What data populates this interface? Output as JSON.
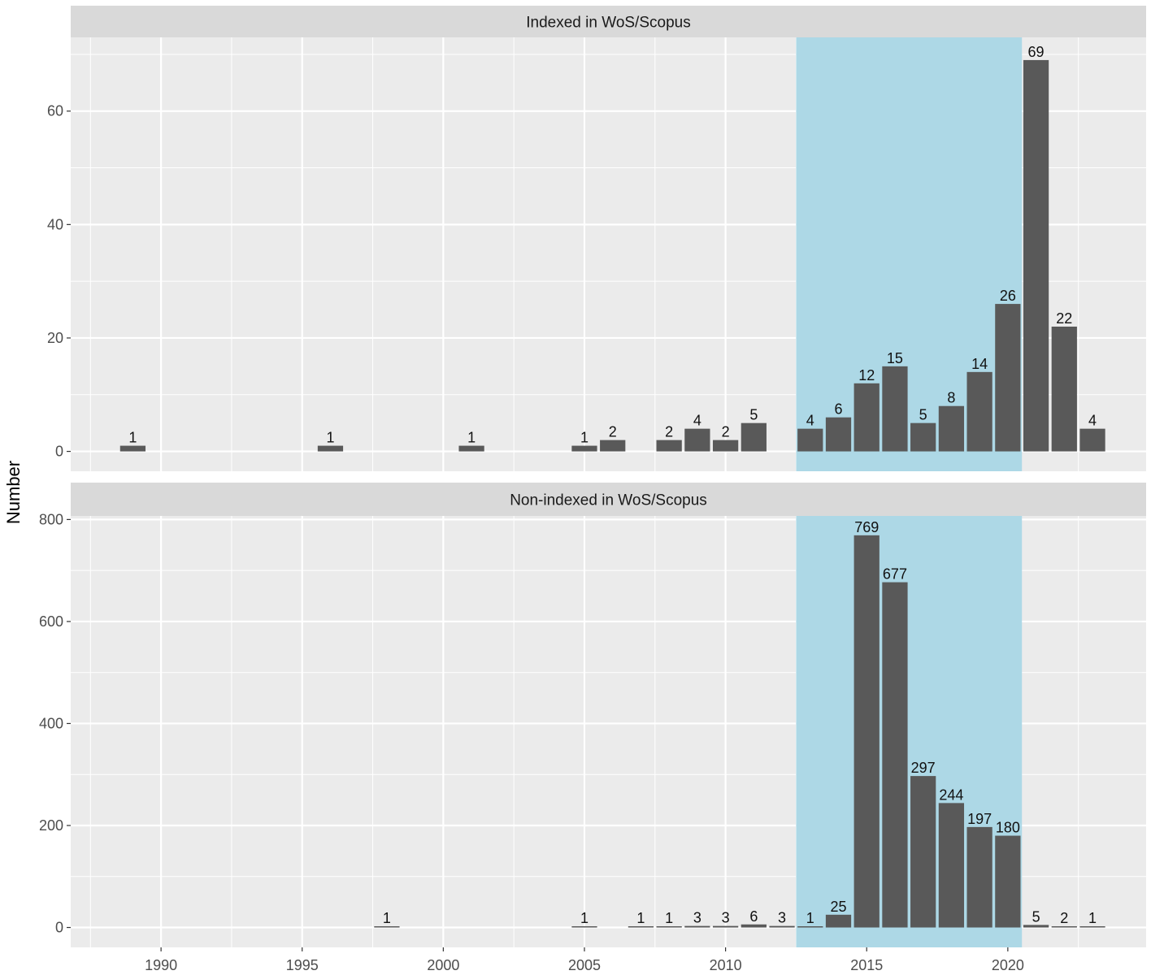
{
  "chart_data": {
    "type": "bar",
    "ylabel": "Number",
    "xlabel": "",
    "x_ticks": [
      1990,
      1995,
      2000,
      2005,
      2010,
      2015,
      2020
    ],
    "x_range": [
      1986.8,
      2024.9
    ],
    "highlight": {
      "from": 2012.5,
      "to": 2020.5,
      "color": "#add8e6"
    },
    "bar_color": "#595959",
    "panel_background": "#ebebeb",
    "strip_background": "#d9d9d9",
    "grid": true,
    "panels": [
      {
        "title": "Indexed in WoS/Scopus",
        "ylim": [
          -3.5,
          73
        ],
        "y_ticks": [
          0,
          20,
          40,
          60
        ],
        "x": [
          1989,
          1996,
          2001,
          2005,
          2006,
          2008,
          2009,
          2010,
          2011,
          2013,
          2014,
          2015,
          2016,
          2017,
          2018,
          2019,
          2020,
          2021,
          2022,
          2023
        ],
        "values": [
          1,
          1,
          1,
          1,
          2,
          2,
          4,
          2,
          5,
          4,
          6,
          12,
          15,
          5,
          8,
          14,
          26,
          69,
          22,
          4
        ]
      },
      {
        "title": "Non-indexed in WoS/Scopus",
        "ylim": [
          -39,
          807
        ],
        "y_ticks": [
          0,
          200,
          400,
          600,
          800
        ],
        "x": [
          1998,
          2005,
          2007,
          2008,
          2009,
          2010,
          2011,
          2012,
          2013,
          2014,
          2015,
          2016,
          2017,
          2018,
          2019,
          2020,
          2021,
          2022,
          2023
        ],
        "values": [
          1,
          1,
          1,
          1,
          3,
          3,
          6,
          3,
          1,
          25,
          769,
          677,
          297,
          244,
          197,
          180,
          5,
          2,
          1
        ]
      }
    ]
  }
}
